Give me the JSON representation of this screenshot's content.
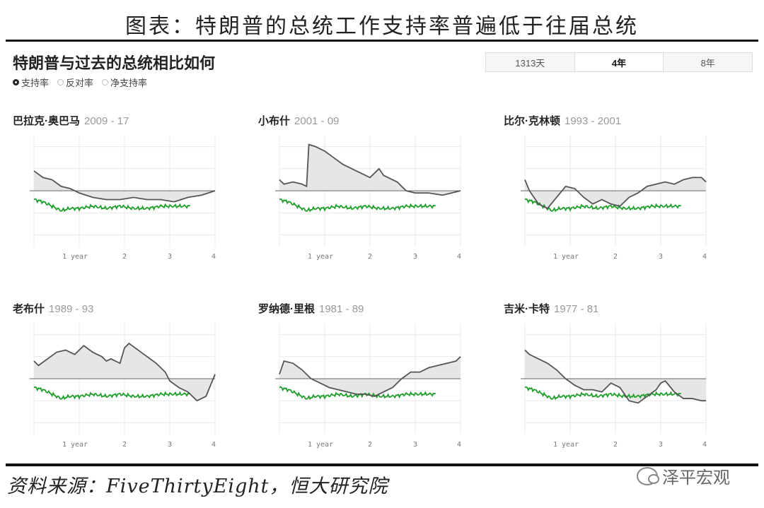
{
  "figure_title": "图表：特朗普的总统工作支持率普遍低于往届总统",
  "header": {
    "title": "特朗普与过去的总统相比如何",
    "radios": [
      {
        "label": "支持率",
        "selected": true
      },
      {
        "label": "反对率",
        "selected": false
      },
      {
        "label": "净支持率",
        "selected": false
      }
    ],
    "segments": [
      {
        "label": "1313天",
        "active": false
      },
      {
        "label": "4年",
        "active": true
      },
      {
        "label": "8年",
        "active": false
      }
    ]
  },
  "colors": {
    "president_line": "#555555",
    "trump_line": "#1e9e2a",
    "fill": "#e6e6e6",
    "grid": "#e9e9e9",
    "baseline": "#666666"
  },
  "chart_data": [
    {
      "type": "line",
      "title": "巴拉克·奥巴马",
      "years": "2009 - 17",
      "xticks": [
        "1 year",
        "2",
        "3",
        "4"
      ],
      "xlim": [
        0,
        4
      ],
      "ylim": [
        25,
        75
      ],
      "baseline": 50,
      "series": [
        {
          "name": "巴拉克·奥巴马",
          "x": [
            0,
            0.2,
            0.4,
            0.6,
            0.8,
            1.0,
            1.3,
            1.6,
            1.9,
            2.2,
            2.5,
            2.8,
            3.1,
            3.4,
            3.7,
            4.0
          ],
          "y": [
            59,
            56,
            55,
            52,
            51,
            49,
            47,
            46,
            46,
            47,
            46,
            46,
            45,
            47,
            48,
            50
          ]
        },
        {
          "name": "Trump",
          "x": [
            0,
            0.2,
            0.4,
            0.6,
            0.8,
            1.0,
            1.3,
            1.6,
            1.9,
            2.2,
            2.5,
            2.8,
            3.1,
            3.45
          ],
          "y": [
            46,
            45,
            43,
            41,
            42,
            42,
            43,
            42,
            43,
            42,
            42,
            43,
            43,
            43
          ]
        }
      ]
    },
    {
      "type": "line",
      "title": "小布什",
      "years": "2001 - 09",
      "xticks": [
        "1 year",
        "2",
        "3",
        "4"
      ],
      "xlim": [
        0,
        4
      ],
      "ylim": [
        25,
        75
      ],
      "baseline": 50,
      "series": [
        {
          "name": "小布什",
          "x": [
            0,
            0.1,
            0.3,
            0.5,
            0.6,
            0.65,
            0.8,
            1.0,
            1.2,
            1.4,
            1.6,
            1.8,
            2.0,
            2.2,
            2.3,
            2.4,
            2.6,
            2.8,
            3.0,
            3.3,
            3.6,
            4.0
          ],
          "y": [
            55,
            53,
            54,
            53,
            52,
            71,
            70,
            68,
            65,
            62,
            60,
            58,
            56,
            60,
            57,
            56,
            54,
            50,
            49,
            49,
            48,
            50
          ]
        },
        {
          "name": "Trump",
          "x": [
            0,
            0.2,
            0.4,
            0.6,
            0.8,
            1.0,
            1.3,
            1.6,
            1.9,
            2.2,
            2.5,
            2.8,
            3.1,
            3.45
          ],
          "y": [
            46,
            45,
            43,
            41,
            42,
            42,
            43,
            42,
            43,
            42,
            42,
            43,
            43,
            43
          ]
        }
      ]
    },
    {
      "type": "line",
      "title": "比尔·克林顿",
      "years": "1993 - 2001",
      "xticks": [
        "1 year",
        "2",
        "3",
        "4"
      ],
      "xlim": [
        0,
        4
      ],
      "ylim": [
        25,
        75
      ],
      "baseline": 50,
      "series": [
        {
          "name": "比尔·克林顿",
          "x": [
            0,
            0.1,
            0.3,
            0.5,
            0.7,
            0.9,
            1.1,
            1.3,
            1.5,
            1.7,
            1.9,
            2.1,
            2.3,
            2.5,
            2.7,
            2.9,
            3.1,
            3.3,
            3.5,
            3.7,
            3.9,
            4.0
          ],
          "y": [
            55,
            50,
            44,
            42,
            47,
            52,
            51,
            47,
            44,
            46,
            44,
            43,
            47,
            49,
            52,
            53,
            54,
            53,
            55,
            56,
            56,
            54
          ]
        },
        {
          "name": "Trump",
          "x": [
            0,
            0.2,
            0.4,
            0.6,
            0.8,
            1.0,
            1.3,
            1.6,
            1.9,
            2.2,
            2.5,
            2.8,
            3.1,
            3.45
          ],
          "y": [
            46,
            45,
            43,
            41,
            42,
            42,
            43,
            42,
            43,
            42,
            42,
            43,
            43,
            43
          ]
        }
      ]
    },
    {
      "type": "line",
      "title": "老布什",
      "years": "1989 - 93",
      "xticks": [
        "1 year",
        "2",
        "3",
        "4"
      ],
      "xlim": [
        0,
        4
      ],
      "ylim": [
        25,
        75
      ],
      "baseline": 50,
      "series": [
        {
          "name": "老布什",
          "x": [
            0,
            0.1,
            0.3,
            0.5,
            0.7,
            0.9,
            1.1,
            1.3,
            1.5,
            1.6,
            1.7,
            1.9,
            2.0,
            2.1,
            2.3,
            2.5,
            2.7,
            2.9,
            3.0,
            3.2,
            3.4,
            3.6,
            3.8,
            4.0
          ],
          "y": [
            58,
            56,
            59,
            62,
            63,
            61,
            65,
            62,
            60,
            58,
            59,
            57,
            64,
            66,
            63,
            60,
            57,
            53,
            49,
            46,
            44,
            40,
            42,
            52
          ]
        },
        {
          "name": "Trump",
          "x": [
            0,
            0.2,
            0.4,
            0.6,
            0.8,
            1.0,
            1.3,
            1.6,
            1.9,
            2.2,
            2.5,
            2.8,
            3.1,
            3.45
          ],
          "y": [
            46,
            45,
            43,
            41,
            42,
            42,
            43,
            42,
            43,
            42,
            42,
            43,
            43,
            43
          ]
        }
      ]
    },
    {
      "type": "line",
      "title": "罗纳德·里根",
      "years": "1981 - 89",
      "xticks": [
        "1 year",
        "2",
        "3",
        "4"
      ],
      "xlim": [
        0,
        4
      ],
      "ylim": [
        25,
        75
      ],
      "baseline": 50,
      "series": [
        {
          "name": "罗纳德·里根",
          "x": [
            0,
            0.1,
            0.3,
            0.5,
            0.7,
            0.9,
            1.1,
            1.3,
            1.5,
            1.7,
            1.9,
            2.1,
            2.3,
            2.5,
            2.7,
            2.9,
            3.1,
            3.3,
            3.5,
            3.7,
            3.9,
            4.0
          ],
          "y": [
            52,
            58,
            57,
            54,
            50,
            48,
            46,
            45,
            44,
            43,
            43,
            42,
            44,
            46,
            50,
            53,
            53,
            55,
            56,
            57,
            58,
            60
          ]
        },
        {
          "name": "Trump",
          "x": [
            0,
            0.2,
            0.4,
            0.6,
            0.8,
            1.0,
            1.3,
            1.6,
            1.9,
            2.2,
            2.5,
            2.8,
            3.1,
            3.45
          ],
          "y": [
            46,
            45,
            43,
            41,
            42,
            42,
            43,
            42,
            43,
            42,
            42,
            43,
            43,
            43
          ]
        }
      ]
    },
    {
      "type": "line",
      "title": "吉米·卡特",
      "years": "1977 - 81",
      "xticks": [
        "1 year",
        "2",
        "3",
        "4"
      ],
      "xlim": [
        0,
        4
      ],
      "ylim": [
        25,
        75
      ],
      "baseline": 50,
      "series": [
        {
          "name": "吉米·卡特",
          "x": [
            0,
            0.1,
            0.3,
            0.5,
            0.7,
            0.9,
            1.1,
            1.3,
            1.5,
            1.7,
            1.9,
            2.1,
            2.3,
            2.5,
            2.7,
            2.9,
            3.0,
            3.1,
            3.3,
            3.5,
            3.7,
            3.9,
            4.0
          ],
          "y": [
            63,
            61,
            59,
            57,
            54,
            50,
            47,
            45,
            45,
            44,
            48,
            46,
            40,
            39,
            42,
            45,
            48,
            49,
            44,
            41,
            41,
            40,
            40
          ]
        },
        {
          "name": "Trump",
          "x": [
            0,
            0.2,
            0.4,
            0.6,
            0.8,
            1.0,
            1.3,
            1.6,
            1.9,
            2.2,
            2.5,
            2.8,
            3.1,
            3.45
          ],
          "y": [
            46,
            45,
            43,
            41,
            42,
            42,
            43,
            42,
            43,
            42,
            42,
            43,
            43,
            43
          ]
        }
      ]
    }
  ],
  "source": "资料来源：FiveThirtyEight，恒大研究院",
  "watermark": "泽平宏观"
}
